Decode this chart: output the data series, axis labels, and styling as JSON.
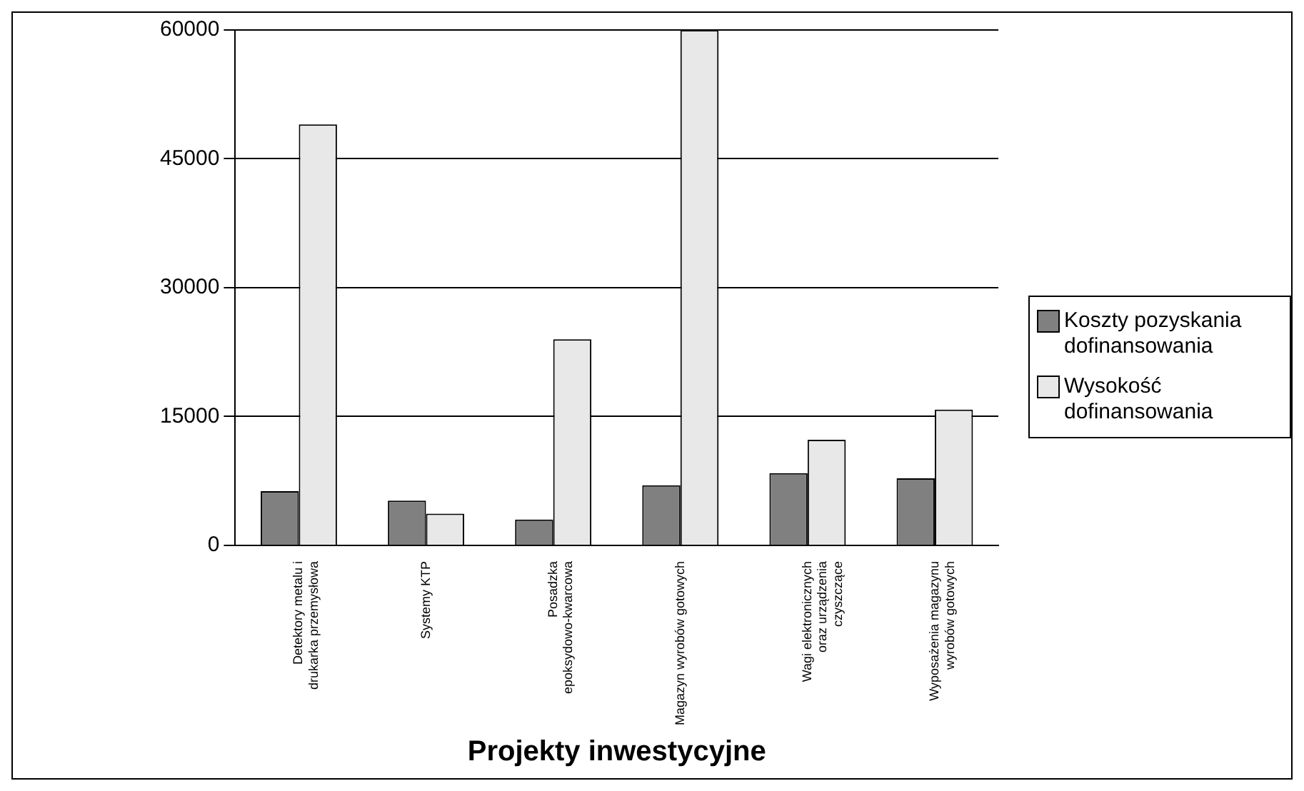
{
  "chart_data": {
    "type": "bar",
    "xlabel": "Projekty inwestycyjne",
    "categories": [
      "Detektory metalu i drukarka przemysłowa",
      "Systemy KTP",
      "Posadzka epoksydowo-kwarcowa",
      "Magazyn wyrobów gotowych",
      "Wagi elektronicznych oraz urządzenia czyszczące",
      "Wyposażenia magazynu wyrobów gotowych"
    ],
    "series": [
      {
        "name": "Koszty pozyskania dofinansowania",
        "color": "#808080",
        "values": [
          6300,
          5200,
          3000,
          7000,
          8400,
          7800
        ]
      },
      {
        "name": "Wysokość dofinansowania",
        "color": "#e8e8e8",
        "values": [
          49000,
          3700,
          24000,
          60000,
          12300,
          15800
        ]
      }
    ],
    "ylim": [
      0,
      60000
    ],
    "yticks": [
      0,
      15000,
      30000,
      45000,
      60000
    ],
    "grid": "y",
    "legend": "right"
  }
}
